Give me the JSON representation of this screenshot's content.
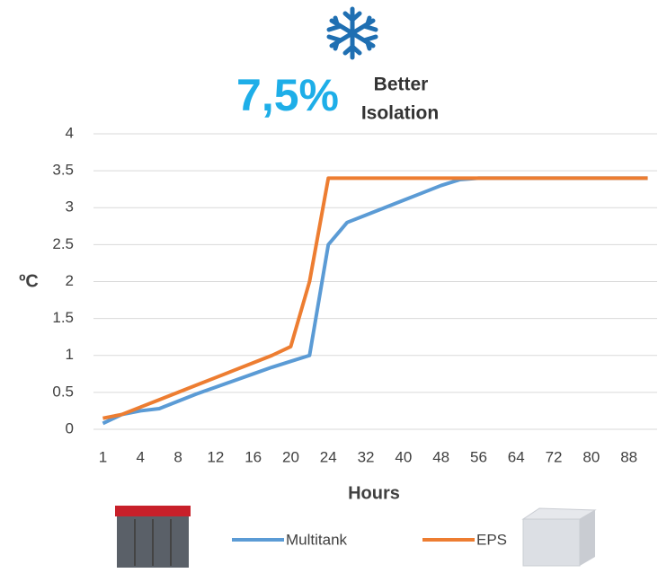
{
  "chart_data": {
    "type": "line",
    "headline": "7,5%",
    "headline_note": [
      "Better",
      "Isolation"
    ],
    "y_label": "ºC",
    "x_label": "Hours",
    "categories": [
      "1",
      null,
      "4",
      null,
      "8",
      null,
      "12",
      null,
      "16",
      null,
      "20",
      null,
      "24",
      null,
      "32",
      null,
      "40",
      null,
      "48",
      null,
      "56",
      null,
      "64",
      null,
      "72",
      null,
      "80",
      null,
      "88",
      null
    ],
    "series": [
      {
        "name": "Multitank",
        "color": "#5b9bd5",
        "values": [
          0.08,
          0.2,
          0.25,
          0.28,
          0.38,
          0.48,
          0.57,
          0.66,
          0.75,
          0.84,
          0.92,
          1.0,
          2.5,
          2.8,
          2.9,
          3.0,
          3.1,
          3.2,
          3.3,
          3.38,
          3.4,
          3.4,
          3.4,
          3.4,
          3.4,
          3.4,
          3.4,
          3.4,
          3.4,
          3.4
        ]
      },
      {
        "name": "EPS",
        "color": "#ed7d31",
        "values": [
          0.15,
          0.2,
          0.3,
          0.4,
          0.5,
          0.6,
          0.7,
          0.8,
          0.9,
          1.0,
          1.12,
          2.0,
          3.4,
          3.4,
          3.4,
          3.4,
          3.4,
          3.4,
          3.4,
          3.4,
          3.4,
          3.4,
          3.4,
          3.4,
          3.4,
          3.4,
          3.4,
          3.4,
          3.4,
          3.4
        ]
      }
    ],
    "ylim": [
      0,
      4
    ],
    "yticks": [
      0,
      0.5,
      1,
      1.5,
      2,
      2.5,
      3,
      3.5,
      4
    ],
    "grid": true
  }
}
